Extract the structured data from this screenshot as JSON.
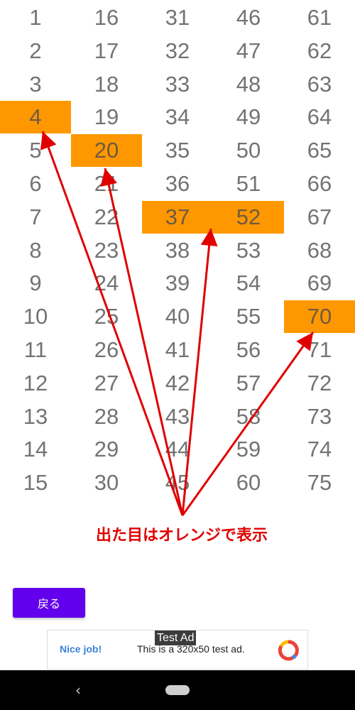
{
  "grid": {
    "columns": [
      [
        "1",
        "2",
        "3",
        "4",
        "5",
        "6",
        "7",
        "8",
        "9",
        "10",
        "11",
        "12",
        "13",
        "14",
        "15"
      ],
      [
        "16",
        "17",
        "18",
        "19",
        "20",
        "21",
        "22",
        "23",
        "24",
        "25",
        "26",
        "27",
        "28",
        "29",
        "30"
      ],
      [
        "31",
        "32",
        "33",
        "34",
        "35",
        "36",
        "37",
        "38",
        "39",
        "40",
        "41",
        "42",
        "43",
        "44",
        "45"
      ],
      [
        "46",
        "47",
        "48",
        "49",
        "50",
        "51",
        "52",
        "53",
        "54",
        "55",
        "56",
        "57",
        "58",
        "59",
        "60"
      ],
      [
        "61",
        "62",
        "63",
        "64",
        "65",
        "66",
        "67",
        "68",
        "69",
        "70",
        "71",
        "72",
        "73",
        "74",
        "75"
      ]
    ],
    "drawn_numbers": [
      "4",
      "20",
      "37",
      "52",
      "70"
    ]
  },
  "annotation": {
    "text": "出た目はオレンジで表示",
    "color": "#e00000"
  },
  "back_button": {
    "label": "戻る",
    "color": "#6200ee"
  },
  "ad": {
    "badge": "Test Ad",
    "headline": "Nice job!",
    "text": "This is a 320x50 test ad."
  },
  "navbar": {
    "back_icon": "‹"
  },
  "colors": {
    "highlight": "#ff9800",
    "number_text": "#737373",
    "arrow": "#e00000"
  }
}
